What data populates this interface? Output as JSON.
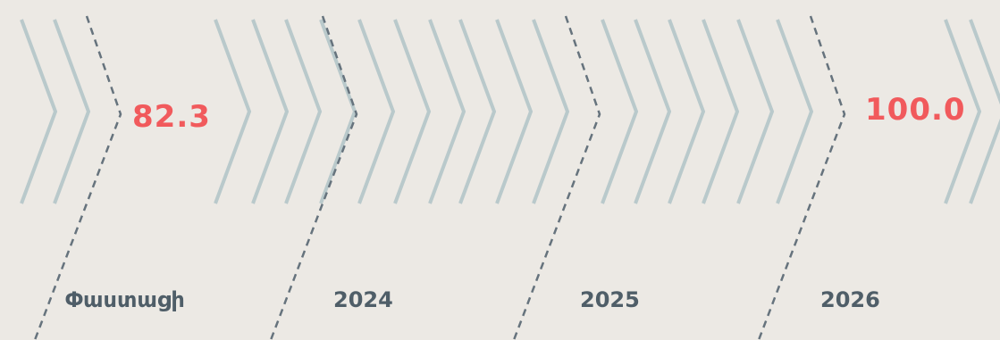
{
  "chart_data": {
    "type": "bar",
    "title": "",
    "xlabel": "",
    "ylabel": "",
    "categories": [
      "Փաստացի",
      "2024",
      "2025",
      "2026"
    ],
    "values": [
      82.3,
      null,
      null,
      100.0
    ],
    "value_labels": [
      "82.3",
      "",
      "",
      "100.0"
    ],
    "colors": {
      "background": "#ece9e4",
      "chevron": "#b9c9cb",
      "divider": "#66737d",
      "value": "#f15a5c",
      "label": "#4f5e68"
    }
  }
}
